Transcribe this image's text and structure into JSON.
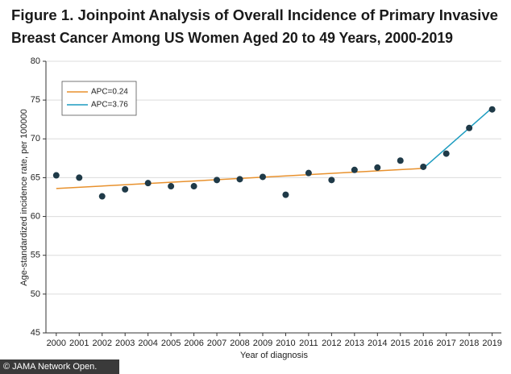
{
  "chart_data": {
    "type": "scatter",
    "title": [
      "Figure 1.  Joinpoint Analysis of Overall Incidence of Primary Invasive",
      "Breast Cancer Among US Women Aged 20 to 49 Years, 2000-2019"
    ],
    "xlabel": "Year of diagnosis",
    "ylabel": "Age-standardized incidence rate, per 100000",
    "xlim": [
      1999.55,
      2019.4
    ],
    "ylim": [
      45,
      80
    ],
    "xticks": [
      2000,
      2001,
      2002,
      2003,
      2004,
      2005,
      2006,
      2007,
      2008,
      2009,
      2010,
      2011,
      2012,
      2013,
      2014,
      2015,
      2016,
      2017,
      2018,
      2019
    ],
    "yticks": [
      45,
      50,
      55,
      60,
      65,
      70,
      75,
      80
    ],
    "grid": true,
    "legend": "upper left",
    "series": [
      {
        "type": "scatter",
        "color": "#1f3a48",
        "x": [
          2000,
          2001,
          2002,
          2003,
          2004,
          2005,
          2006,
          2007,
          2008,
          2009,
          2010,
          2011,
          2012,
          2013,
          2014,
          2015,
          2016,
          2017,
          2018,
          2019
        ],
        "values": [
          65.3,
          65.0,
          62.6,
          63.5,
          64.3,
          63.9,
          63.9,
          64.7,
          64.8,
          65.1,
          62.8,
          65.6,
          64.7,
          66.0,
          66.3,
          67.2,
          66.4,
          68.1,
          71.4,
          73.8
        ]
      },
      {
        "type": "line",
        "name": "APC=0.24",
        "color": "#e8912d",
        "x": [
          2000,
          2016
        ],
        "values": [
          63.6,
          66.2
        ]
      },
      {
        "type": "line",
        "name": "APC=3.76",
        "color": "#1c9cc0",
        "x": [
          2016,
          2019
        ],
        "values": [
          66.2,
          74.0
        ]
      }
    ],
    "credit": "© JAMA Network Open."
  }
}
